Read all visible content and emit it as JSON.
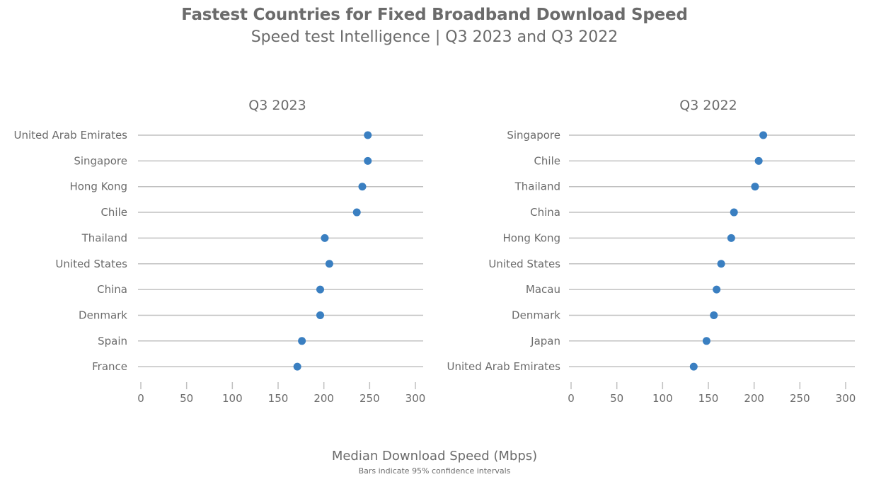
{
  "header": {
    "title": "Fastest Countries for Fixed Broadband Download Speed",
    "subtitle": "Speed test Intelligence | Q3 2023 and Q3 2022"
  },
  "footer": {
    "xlabel": "Median Download Speed (Mbps)",
    "note": "Bars indicate 95% confidence intervals"
  },
  "colors": {
    "dot": "#3a7fc1",
    "line": "#c0c0c0",
    "text": "#6b6b6b"
  },
  "chart_data": [
    {
      "type": "scatter",
      "title": "Q3 2023",
      "xlim": [
        0,
        300
      ],
      "xticks": [
        0,
        50,
        100,
        150,
        200,
        250,
        300
      ],
      "categories": [
        "United Arab Emirates",
        "Singapore",
        "Hong Kong",
        "Chile",
        "Thailand",
        "United States",
        "China",
        "Denmark",
        "Spain",
        "France"
      ],
      "values": [
        248,
        248,
        242,
        236,
        201,
        206,
        196,
        196,
        176,
        171
      ]
    },
    {
      "type": "scatter",
      "title": "Q3 2022",
      "xlim": [
        0,
        300
      ],
      "xticks": [
        0,
        50,
        100,
        150,
        200,
        250,
        300
      ],
      "categories": [
        "Singapore",
        "Chile",
        "Thailand",
        "China",
        "Hong Kong",
        "United States",
        "Macau",
        "Denmark",
        "Japan",
        "United Arab Emirates"
      ],
      "values": [
        210,
        205,
        201,
        178,
        175,
        164,
        159,
        156,
        148,
        134
      ]
    }
  ]
}
